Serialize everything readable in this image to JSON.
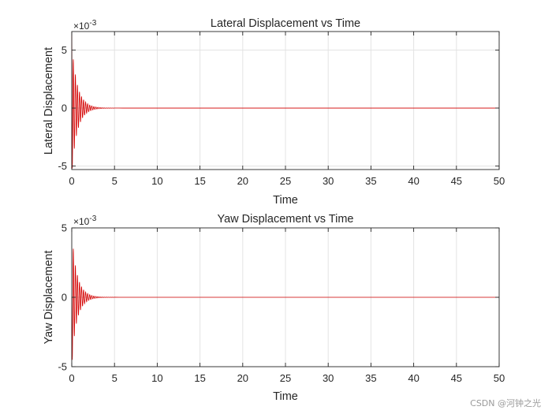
{
  "chart_data": [
    {
      "type": "line",
      "title": "Lateral Displacement vs Time",
      "xlabel": "Time",
      "ylabel": "Lateral Displacement",
      "exponent_label": "×10",
      "exponent": "-3",
      "xlim": [
        0,
        50
      ],
      "ylim": [
        -0.0053,
        0.0066
      ],
      "xticks": [
        0,
        5,
        10,
        15,
        20,
        25,
        30,
        35,
        40,
        45,
        50
      ],
      "yticks": [
        -0.005,
        0,
        0.005
      ],
      "yticklabels": [
        "-5",
        "0",
        "5"
      ],
      "grid": true,
      "line_color": "#d40000",
      "series": [
        {
          "x": [
            0.0,
            0.06,
            0.18,
            0.3,
            0.42,
            0.54,
            0.66,
            0.78,
            0.9,
            1.02,
            1.14,
            1.26,
            1.38,
            1.5,
            1.62,
            1.74,
            1.86,
            1.98,
            2.1,
            2.22,
            2.34,
            2.46,
            2.58,
            2.7,
            2.82,
            2.94,
            3.06,
            3.18,
            3.3,
            3.42,
            3.54,
            3.66,
            3.78,
            3.9,
            4.02,
            4.14,
            4.26,
            4.38,
            4.5,
            4.62,
            4.74,
            4.86,
            5.0,
            5.5,
            6.0,
            8.0,
            10.0,
            15.0,
            20.0,
            30.0,
            40.0,
            50.0
          ],
          "y": [
            0.0066,
            -0.0052,
            0.0042,
            -0.0035,
            0.0029,
            -0.0024,
            0.002,
            -0.0017,
            0.0014,
            -0.0012,
            0.001,
            -0.00085,
            0.00072,
            -0.00061,
            0.00052,
            -0.00044,
            0.00037,
            -0.00031,
            0.00026,
            -0.00022,
            0.00019,
            -0.00016,
            0.00013,
            -0.00011,
            9.5e-05,
            -8e-05,
            6.8e-05,
            -5.7e-05,
            4.8e-05,
            -4e-05,
            3.4e-05,
            -2.9e-05,
            2.4e-05,
            -2e-05,
            1.7e-05,
            -1.4e-05,
            1.2e-05,
            -1e-05,
            8.5e-06,
            -7e-06,
            6e-06,
            -5e-06,
            4e-06,
            2e-06,
            1e-06,
            0.0,
            0.0,
            0.0,
            0.0,
            0.0,
            0.0,
            0.0
          ]
        }
      ]
    },
    {
      "type": "line",
      "title": "Yaw Displacement vs Time",
      "xlabel": "Time",
      "ylabel": "Yaw Displacement",
      "exponent_label": "×10",
      "exponent": "-3",
      "xlim": [
        0,
        50
      ],
      "ylim": [
        -0.005,
        0.005
      ],
      "xticks": [
        0,
        5,
        10,
        15,
        20,
        25,
        30,
        35,
        40,
        45,
        50
      ],
      "yticks": [
        -0.005,
        0,
        0.005
      ],
      "yticklabels": [
        "-5",
        "0",
        "5"
      ],
      "grid": true,
      "line_color": "#d40000",
      "series": [
        {
          "x": [
            0.0,
            0.06,
            0.18,
            0.3,
            0.42,
            0.54,
            0.66,
            0.78,
            0.9,
            1.02,
            1.14,
            1.26,
            1.38,
            1.5,
            1.62,
            1.74,
            1.86,
            1.98,
            2.1,
            2.22,
            2.34,
            2.46,
            2.58,
            2.7,
            2.82,
            2.94,
            3.06,
            3.18,
            3.3,
            3.42,
            3.54,
            3.66,
            3.78,
            3.9,
            4.02,
            4.14,
            4.26,
            4.38,
            4.5,
            4.62,
            4.74,
            4.86,
            5.0,
            5.5,
            6.0,
            8.0,
            10.0,
            15.0,
            20.0,
            30.0,
            40.0,
            50.0
          ],
          "y": [
            0.0,
            -0.0045,
            0.0035,
            -0.0028,
            0.0023,
            -0.0019,
            0.0016,
            -0.0013,
            0.0011,
            -0.00092,
            0.00077,
            -0.00064,
            0.00054,
            -0.00045,
            0.00038,
            -0.00032,
            0.00027,
            -0.00022,
            0.00019,
            -0.00016,
            0.00013,
            -0.00011,
            9.4e-05,
            -7.9e-05,
            6.6e-05,
            -5.5e-05,
            4.6e-05,
            -3.9e-05,
            3.3e-05,
            -2.7e-05,
            2.3e-05,
            -1.9e-05,
            1.6e-05,
            -1.3e-05,
            1.1e-05,
            -9.5e-06,
            8e-06,
            -6.7e-06,
            5.6e-06,
            -4.7e-06,
            4e-06,
            -3.3e-06,
            2.8e-06,
            1.5e-06,
            8e-07,
            0.0,
            0.0,
            0.0,
            0.0,
            0.0,
            0.0,
            0.0
          ]
        }
      ]
    }
  ],
  "watermark": "CSDN @河钟之光"
}
